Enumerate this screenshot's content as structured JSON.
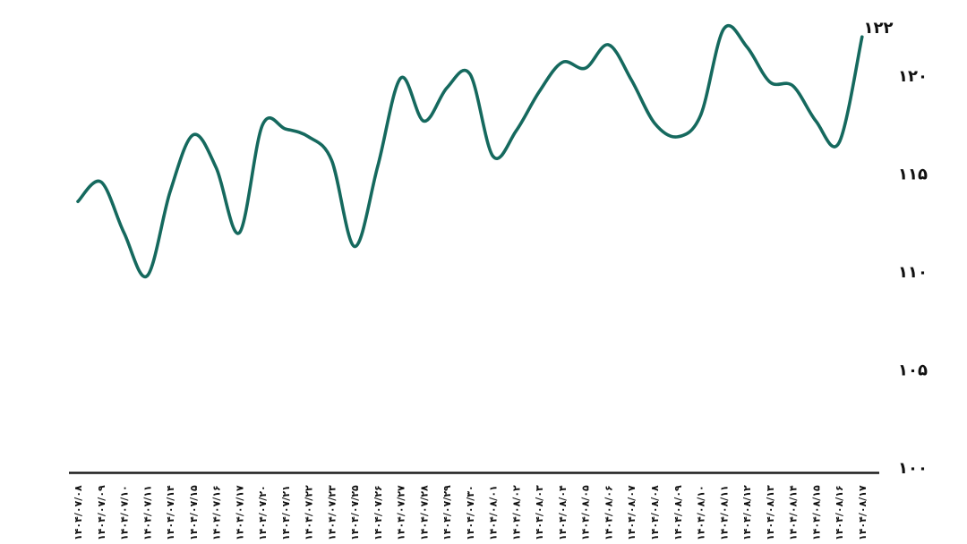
{
  "chart_data": {
    "type": "line",
    "title": "",
    "xlabel": "",
    "ylabel": "",
    "legend": "none",
    "grid": false,
    "line_color": "#15695e",
    "text_color": "#111111",
    "axis_color": "#1c1c1c",
    "background_color": "#ffffff",
    "ylim": [
      100,
      123
    ],
    "last_point_label": "۱۲۲",
    "y_ticks": [
      {
        "label": "۱۲۰",
        "value": 120
      },
      {
        "label": "۱۱۵",
        "value": 115
      },
      {
        "label": "۱۱۰",
        "value": 110
      },
      {
        "label": "۱۰۵",
        "value": 105
      },
      {
        "label": "۱۰۰",
        "value": 100
      }
    ],
    "categories": [
      "۱۴۰۴/۰۷/۰۸",
      "۱۴۰۴/۰۷/۰۹",
      "۱۴۰۴/۰۷/۱۰",
      "۱۴۰۴/۰۷/۱۱",
      "۱۴۰۴/۰۷/۱۴",
      "۱۴۰۴/۰۷/۱۵",
      "۱۴۰۴/۰۷/۱۶",
      "۱۴۰۴/۰۷/۱۷",
      "۱۴۰۴/۰۷/۲۰",
      "۱۴۰۴/۰۷/۲۱",
      "۱۴۰۴/۰۷/۲۲",
      "۱۴۰۴/۰۷/۲۳",
      "۱۴۰۴/۰۷/۲۵",
      "۱۴۰۴/۰۷/۲۶",
      "۱۴۰۴/۰۷/۲۷",
      "۱۴۰۴/۰۷/۲۸",
      "۱۴۰۴/۰۷/۲۹",
      "۱۴۰۴/۰۷/۳۰",
      "۱۴۰۴/۰۸/۰۱",
      "۱۴۰۴/۰۸/۰۲",
      "۱۴۰۴/۰۸/۰۳",
      "۱۴۰۴/۰۸/۰۴",
      "۱۴۰۴/۰۸/۰۵",
      "۱۴۰۴/۰۸/۰۶",
      "۱۴۰۴/۰۸/۰۷",
      "۱۴۰۴/۰۸/۰۸",
      "۱۴۰۴/۰۸/۰۹",
      "۱۴۰۴/۰۸/۱۰",
      "۱۴۰۴/۰۸/۱۱",
      "۱۴۰۴/۰۸/۱۲",
      "۱۴۰۴/۰۸/۱۳",
      "۱۴۰۴/۰۸/۱۴",
      "۱۴۰۴/۰۸/۱۵",
      "۱۴۰۴/۰۸/۱۶",
      "۱۴۰۴/۰۸/۱۷"
    ],
    "values": [
      113.6,
      114.6,
      112.0,
      109.8,
      114.1,
      117.0,
      115.3,
      112.0,
      117.5,
      117.3,
      116.9,
      115.7,
      111.3,
      115.4,
      119.9,
      117.7,
      119.4,
      120.1,
      115.9,
      117.2,
      119.2,
      120.7,
      120.4,
      121.6,
      119.8,
      117.6,
      116.9,
      118.0,
      122.4,
      121.5,
      119.7,
      119.5,
      117.7,
      116.6,
      122.0
    ]
  }
}
